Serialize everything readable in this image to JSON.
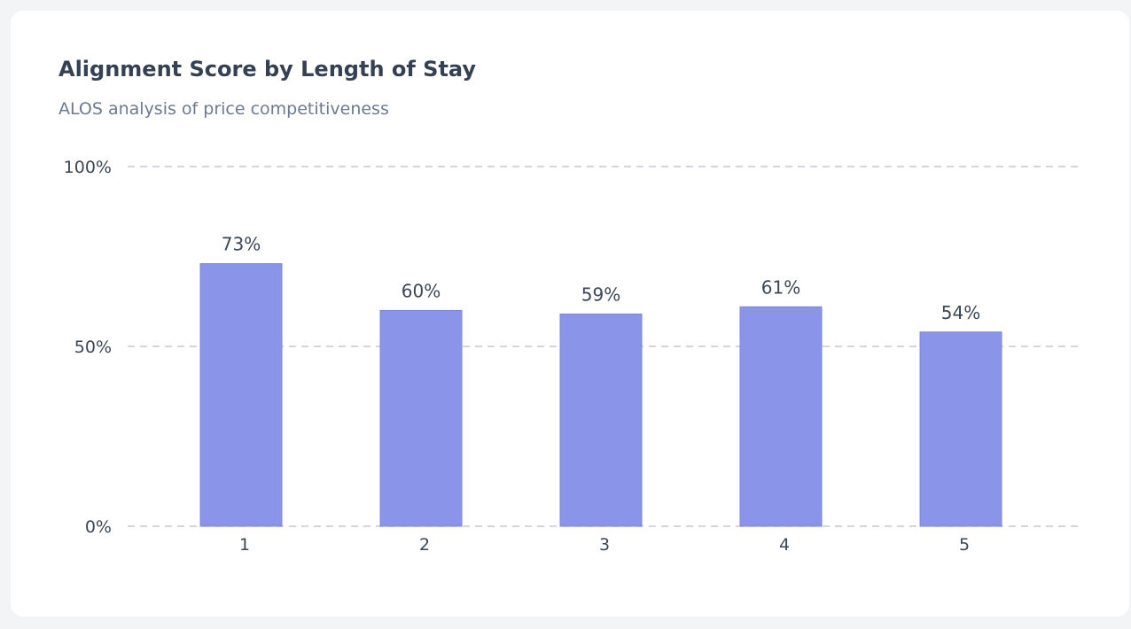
{
  "chart": {
    "title": "Alignment Score by Length of Stay",
    "subtitle": "ALOS analysis of price competitiveness"
  },
  "chart_data": {
    "type": "bar",
    "title": "Alignment Score by Length of Stay",
    "subtitle": "ALOS analysis of price competitiveness",
    "categories": [
      "1",
      "2",
      "3",
      "4",
      "5"
    ],
    "values": [
      73,
      60,
      59,
      61,
      54
    ],
    "value_labels": [
      "73%",
      "60%",
      "59%",
      "61%",
      "54%"
    ],
    "xlabel": "",
    "ylabel": "",
    "ylim": [
      0,
      100
    ],
    "y_ticks": [
      0,
      50,
      100
    ],
    "y_tick_labels": [
      "0%",
      "50%",
      "100%"
    ],
    "grid": true,
    "bar_color": "#8a94e8",
    "bar_border_color": "#7c86dc"
  }
}
